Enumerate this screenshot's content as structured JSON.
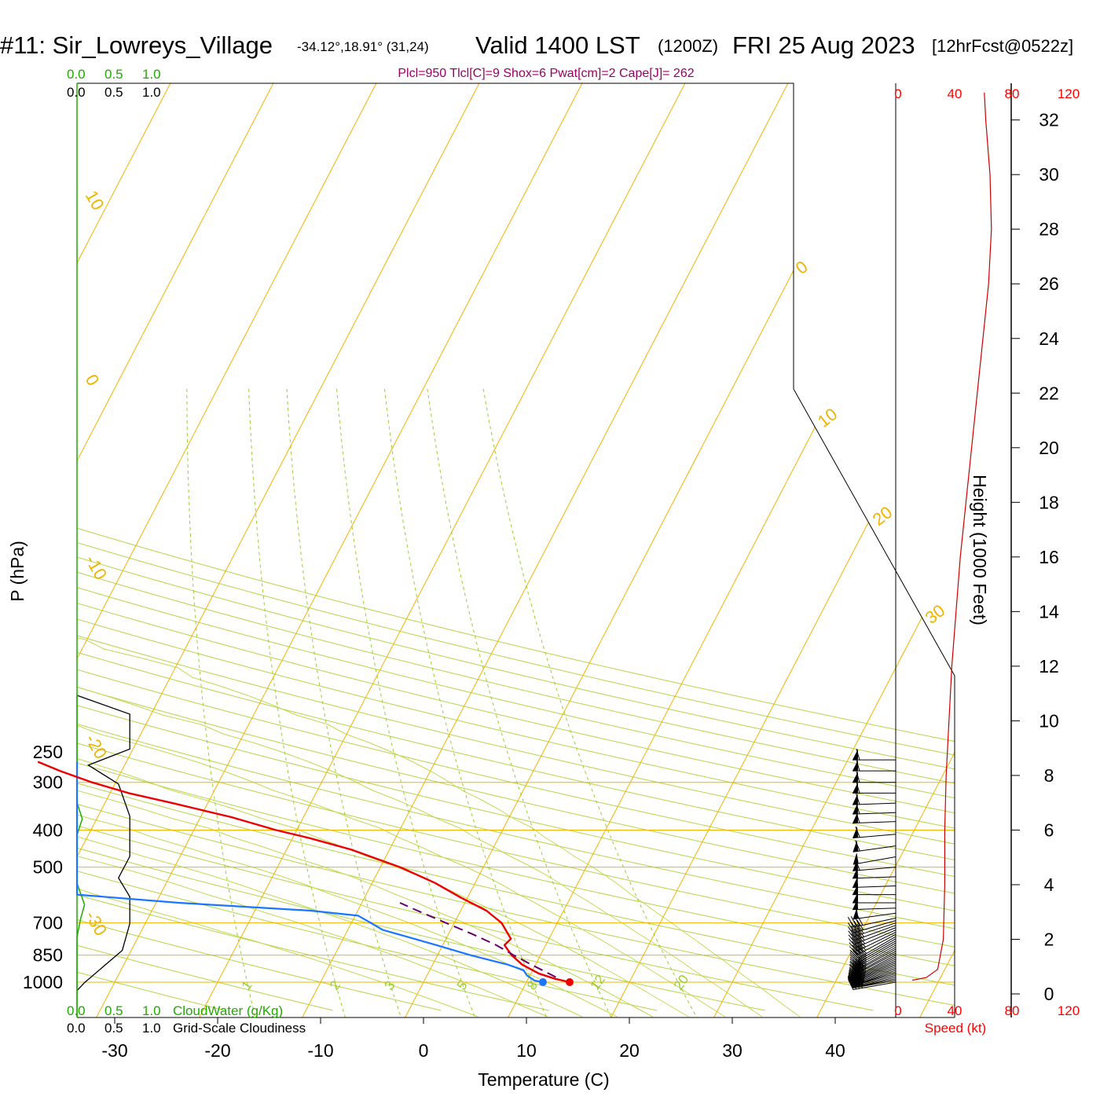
{
  "header": {
    "station": "#11: Sir_Lowreys_Village",
    "coords": "-34.12°,18.91° (31,24)",
    "valid": "Valid 1400 LST",
    "zulu": "(1200Z)",
    "date": "FRI 25 Aug 2023",
    "forecast": "[12hrFcst@0522z]",
    "params": "Plcl=950 Tlcl[C]=9 Shox=6 Pwat[cm]=2 Cape[J]= 262"
  },
  "cloud_scale": {
    "green_ticks": [
      "0.0",
      "0.5",
      "1.0"
    ],
    "black_ticks": [
      "0.0",
      "0.5",
      "1.0"
    ],
    "green_label": "CloudWater (g/Kg)",
    "black_label": "Grid-Scale Cloudiness"
  },
  "wind_scale": {
    "ticks": [
      "0",
      "40",
      "80",
      "120"
    ],
    "label": "Speed (kt)"
  },
  "colors": {
    "temperature": "#ee0000",
    "dewpoint": "#1a75ff",
    "parcel": "#660066",
    "isotherm": "#f0b400",
    "mixing_ratio": "#9acd32",
    "cloud_water": "#22aa00",
    "cloudiness": "#000000",
    "wind_speed": "#cc0000"
  },
  "chart_data": {
    "type": "skew-t",
    "xlabel": "Temperature (C)",
    "ylabel": "P (hPa)",
    "y2label": "Height (1000 Feet)",
    "x_ticks": [
      -30,
      -20,
      -10,
      0,
      10,
      20,
      30,
      40
    ],
    "pressure_ticks": [
      250,
      300,
      400,
      500,
      700,
      850,
      1000
    ],
    "height_ticks": [
      0,
      2,
      4,
      6,
      8,
      10,
      12,
      14,
      16,
      18,
      20,
      22,
      24,
      26,
      28,
      30,
      32
    ],
    "isotherm_labels": [
      "-30",
      "-20",
      "-10",
      "0",
      "10",
      "20",
      "30",
      "0",
      "10",
      "20",
      "30"
    ],
    "mixing_ratio_labels": [
      "1",
      "2",
      "3",
      "5",
      "8",
      "12",
      "20"
    ],
    "temperature": [
      {
        "p": 1000,
        "t": 14.2
      },
      {
        "p": 980,
        "t": 12.6
      },
      {
        "p": 950,
        "t": 10.8
      },
      {
        "p": 900,
        "t": 8.7
      },
      {
        "p": 850,
        "t": 7.2
      },
      {
        "p": 800,
        "t": 6.0
      },
      {
        "p": 770,
        "t": 6.3
      },
      {
        "p": 720,
        "t": 5.1
      },
      {
        "p": 700,
        "t": 4.6
      },
      {
        "p": 650,
        "t": 2.5
      },
      {
        "p": 600,
        "t": -0.7
      },
      {
        "p": 550,
        "t": -3.9
      },
      {
        "p": 500,
        "t": -8.1
      },
      {
        "p": 450,
        "t": -13.7
      },
      {
        "p": 420,
        "t": -18.3
      },
      {
        "p": 400,
        "t": -22.0
      },
      {
        "p": 370,
        "t": -27.0
      },
      {
        "p": 340,
        "t": -33.4
      },
      {
        "p": 320,
        "t": -38.2
      },
      {
        "p": 300,
        "t": -42.3
      },
      {
        "p": 280,
        "t": -46.0
      },
      {
        "p": 265,
        "t": -48.6
      }
    ],
    "dewpoint": [
      {
        "p": 1000,
        "t": 11.6
      },
      {
        "p": 990,
        "t": 10.7
      },
      {
        "p": 960,
        "t": 9.7
      },
      {
        "p": 930,
        "t": 9.1
      },
      {
        "p": 900,
        "t": 7.3
      },
      {
        "p": 850,
        "t": 3.2
      },
      {
        "p": 800,
        "t": -0.6
      },
      {
        "p": 770,
        "t": -3.1
      },
      {
        "p": 730,
        "t": -6.6
      },
      {
        "p": 700,
        "t": -8.1
      },
      {
        "p": 670,
        "t": -9.7
      },
      {
        "p": 650,
        "t": -14.6
      },
      {
        "p": 620,
        "t": -27.8
      },
      {
        "p": 590,
        "t": -40.0
      },
      {
        "p": 560,
        "t": -53.3
      },
      {
        "p": 540,
        "t": -60.0
      },
      {
        "p": 500,
        "t": -67.9
      },
      {
        "p": 450,
        "t": -79.5
      },
      {
        "p": 370,
        "t": -92.9
      },
      {
        "p": 360,
        "t": -93.7
      },
      {
        "p": 330,
        "t": -94.9
      },
      {
        "p": 300,
        "t": -95.0
      },
      {
        "p": 280,
        "t": -95.0
      },
      {
        "p": 265,
        "t": -95.0
      }
    ],
    "parcel": [
      {
        "p": 970,
        "t": 12.6
      },
      {
        "p": 900,
        "t": 9.6
      },
      {
        "p": 850,
        "t": 7.4
      },
      {
        "p": 800,
        "t": 5.2
      },
      {
        "p": 750,
        "t": 2.4
      },
      {
        "p": 700,
        "t": -0.8
      },
      {
        "p": 650,
        "t": -4.2
      },
      {
        "p": 620,
        "t": -6.3
      }
    ],
    "cloudiness": [
      {
        "h": 1.0,
        "c": 0.0
      },
      {
        "h": 1.3,
        "c": 0.1
      },
      {
        "h": 2.5,
        "c": 0.6
      },
      {
        "h": 3.5,
        "c": 0.7
      },
      {
        "h": 4.5,
        "c": 0.7
      },
      {
        "h": 5.2,
        "c": 0.55
      },
      {
        "h": 6.0,
        "c": 0.7
      },
      {
        "h": 7.5,
        "c": 0.7
      },
      {
        "h": 8.7,
        "c": 0.55
      },
      {
        "h": 9.4,
        "c": 0.15
      },
      {
        "h": 10.0,
        "c": 0.7
      },
      {
        "h": 11.3,
        "c": 0.7
      },
      {
        "h": 12.0,
        "c": 0.0
      }
    ],
    "cloud_water": [
      {
        "h": 0.0,
        "c": 0.0
      },
      {
        "h": 3.0,
        "c": 0.0
      },
      {
        "h": 3.7,
        "c": 0.05
      },
      {
        "h": 4.2,
        "c": 0.1
      },
      {
        "h": 5.0,
        "c": 0.0
      },
      {
        "h": 6.8,
        "c": 0.0
      },
      {
        "h": 7.4,
        "c": 0.07
      },
      {
        "h": 8.0,
        "c": 0.0
      },
      {
        "h": 12.0,
        "c": 0.0
      }
    ],
    "wind_speed": [
      {
        "h": 0.5,
        "s": 10
      },
      {
        "h": 0.6,
        "s": 20
      },
      {
        "h": 0.9,
        "s": 28
      },
      {
        "h": 2.0,
        "s": 32
      },
      {
        "h": 4.0,
        "s": 33
      },
      {
        "h": 6.0,
        "s": 33
      },
      {
        "h": 8.0,
        "s": 34
      },
      {
        "h": 10.0,
        "s": 36
      },
      {
        "h": 12.0,
        "s": 38
      },
      {
        "h": 14.0,
        "s": 41
      },
      {
        "h": 16.0,
        "s": 44
      },
      {
        "h": 18.0,
        "s": 48
      },
      {
        "h": 20.0,
        "s": 52
      },
      {
        "h": 22.0,
        "s": 56
      },
      {
        "h": 24.0,
        "s": 60
      },
      {
        "h": 26.0,
        "s": 64
      },
      {
        "h": 28.0,
        "s": 66
      },
      {
        "h": 30.0,
        "s": 65
      },
      {
        "h": 32.0,
        "s": 62
      },
      {
        "h": 33.0,
        "s": 61
      }
    ],
    "wind_barbs": [
      {
        "p": 1000,
        "dir": 280,
        "spd": 40
      },
      {
        "p": 990,
        "dir": 280,
        "spd": 40
      },
      {
        "p": 980,
        "dir": 282,
        "spd": 40
      },
      {
        "p": 970,
        "dir": 284,
        "spd": 40
      },
      {
        "p": 960,
        "dir": 285,
        "spd": 40
      },
      {
        "p": 950,
        "dir": 286,
        "spd": 40
      },
      {
        "p": 940,
        "dir": 288,
        "spd": 40
      },
      {
        "p": 930,
        "dir": 290,
        "spd": 40
      },
      {
        "p": 920,
        "dir": 291,
        "spd": 40
      },
      {
        "p": 910,
        "dir": 292,
        "spd": 40
      },
      {
        "p": 900,
        "dir": 293,
        "spd": 40
      },
      {
        "p": 890,
        "dir": 294,
        "spd": 40
      },
      {
        "p": 880,
        "dir": 295,
        "spd": 40
      },
      {
        "p": 870,
        "dir": 296,
        "spd": 40
      },
      {
        "p": 860,
        "dir": 297,
        "spd": 40
      },
      {
        "p": 850,
        "dir": 298,
        "spd": 40
      },
      {
        "p": 840,
        "dir": 298,
        "spd": 40
      },
      {
        "p": 830,
        "dir": 299,
        "spd": 40
      },
      {
        "p": 820,
        "dir": 299,
        "spd": 40
      },
      {
        "p": 810,
        "dir": 300,
        "spd": 40
      },
      {
        "p": 800,
        "dir": 300,
        "spd": 40
      },
      {
        "p": 790,
        "dir": 300,
        "spd": 40
      },
      {
        "p": 780,
        "dir": 300,
        "spd": 40
      },
      {
        "p": 770,
        "dir": 300,
        "spd": 40
      },
      {
        "p": 760,
        "dir": 300,
        "spd": 40
      },
      {
        "p": 750,
        "dir": 298,
        "spd": 40
      },
      {
        "p": 740,
        "dir": 296,
        "spd": 40
      },
      {
        "p": 730,
        "dir": 294,
        "spd": 40
      },
      {
        "p": 720,
        "dir": 292,
        "spd": 40
      },
      {
        "p": 710,
        "dir": 290,
        "spd": 40
      },
      {
        "p": 700,
        "dir": 288,
        "spd": 40
      },
      {
        "p": 690,
        "dir": 286,
        "spd": 40
      },
      {
        "p": 680,
        "dir": 282,
        "spd": 40
      },
      {
        "p": 660,
        "dir": 278,
        "spd": 50
      },
      {
        "p": 640,
        "dir": 272,
        "spd": 50
      },
      {
        "p": 620,
        "dir": 270,
        "spd": 50
      },
      {
        "p": 590,
        "dir": 270,
        "spd": 50
      },
      {
        "p": 560,
        "dir": 272,
        "spd": 50
      },
      {
        "p": 530,
        "dir": 272,
        "spd": 50
      },
      {
        "p": 500,
        "dir": 275,
        "spd": 60
      },
      {
        "p": 470,
        "dir": 280,
        "spd": 55
      },
      {
        "p": 440,
        "dir": 278,
        "spd": 60
      },
      {
        "p": 410,
        "dir": 275,
        "spd": 60
      },
      {
        "p": 380,
        "dir": 272,
        "spd": 65
      },
      {
        "p": 360,
        "dir": 272,
        "spd": 65
      },
      {
        "p": 340,
        "dir": 272,
        "spd": 65
      },
      {
        "p": 320,
        "dir": 270,
        "spd": 65
      },
      {
        "p": 300,
        "dir": 270,
        "spd": 65
      },
      {
        "p": 280,
        "dir": 270,
        "spd": 60
      },
      {
        "p": 262,
        "dir": 270,
        "spd": 60
      }
    ]
  }
}
